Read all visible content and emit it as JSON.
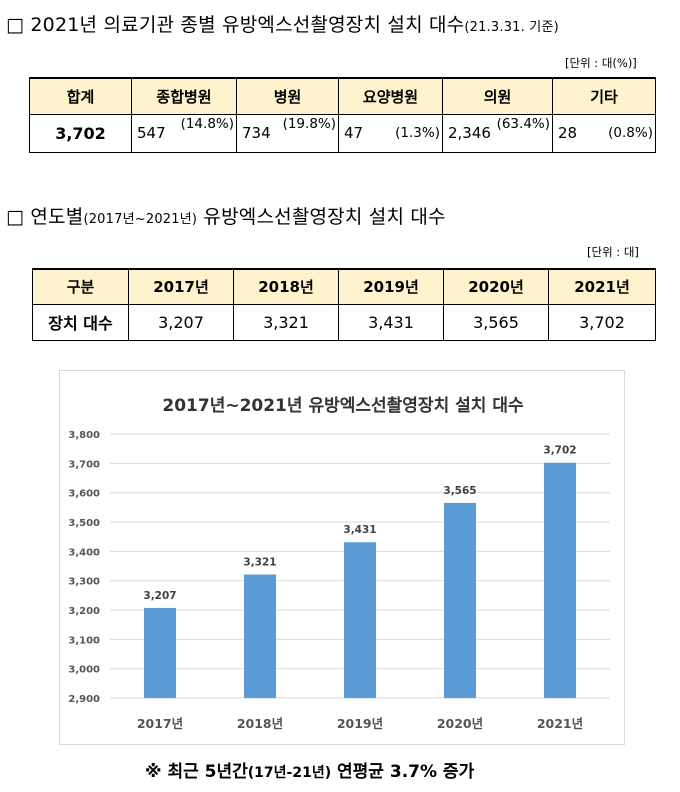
{
  "section1": {
    "heading": "□ 2021년 의료기관 종별 유방엑스선촬영장치 설치 대수",
    "heading_note": "(21.3.31. 기준)",
    "unit": "[단위 : 대(%)]",
    "headers": [
      "합계",
      "종합병원",
      "병원",
      "요양병원",
      "의원",
      "기타"
    ],
    "total": "3,702",
    "cells": [
      {
        "count": "547",
        "pct": "(14.8%)"
      },
      {
        "count": "734",
        "pct": "(19.8%)"
      },
      {
        "count": "47",
        "pct": "(1.3%)"
      },
      {
        "count": "2,346",
        "pct": "(63.4%)"
      },
      {
        "count": "28",
        "pct": "(0.8%)"
      }
    ]
  },
  "section2": {
    "heading": "□ 연도별",
    "heading_note": "(2017년~2021년)",
    "heading_rest": "유방엑스선촬영장치 설치 대수",
    "unit": "[단위 : 대]",
    "headers": [
      "구분",
      "2017년",
      "2018년",
      "2019년",
      "2020년",
      "2021년"
    ],
    "row_label": "장치 대수",
    "row_values": [
      "3,207",
      "3,321",
      "3,431",
      "3,565",
      "3,702"
    ]
  },
  "chart_data": {
    "type": "bar",
    "title": "2017년~2021년 유방엑스선촬영장치 설치 대수",
    "categories": [
      "2017년",
      "2018년",
      "2019년",
      "2020년",
      "2021년"
    ],
    "values": [
      3207,
      3321,
      3431,
      3565,
      3702
    ],
    "value_labels": [
      "3,207",
      "3,321",
      "3,431",
      "3,565",
      "3,702"
    ],
    "ylim": [
      2900,
      3800
    ],
    "yticks": [
      2900,
      3000,
      3100,
      3200,
      3300,
      3400,
      3500,
      3600,
      3700,
      3800
    ],
    "ytick_labels": [
      "2,900",
      "3,000",
      "3,100",
      "3,200",
      "3,300",
      "3,400",
      "3,500",
      "3,600",
      "3,700",
      "3,800"
    ],
    "grid": true,
    "bar_color": "#5b9bd5",
    "grid_color": "#d9d9d9"
  },
  "footer": {
    "prefix": "※ 최근 5년간",
    "note": "(17년-21년)",
    "suffix": "연평균 3.7% 증가"
  }
}
